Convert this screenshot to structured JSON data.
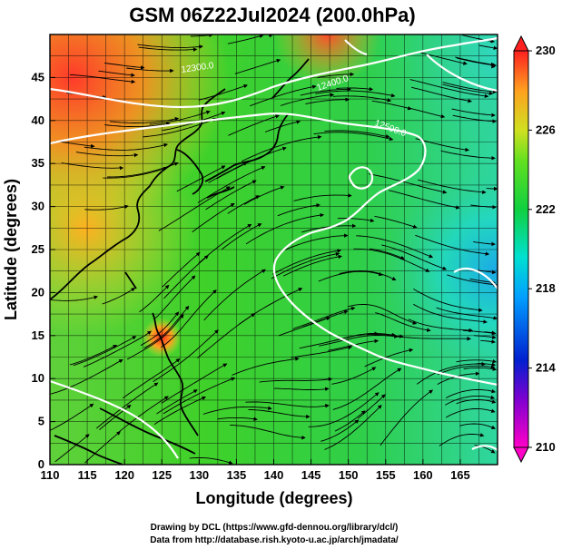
{
  "title": "GSM 06Z22Jul2024 (200.0hPa)",
  "xlabel": "Longitude (degrees)",
  "ylabel": "Latitude  (degrees)",
  "x_ticks": [
    "110",
    "115",
    "120",
    "125",
    "130",
    "135",
    "140",
    "145",
    "150",
    "155",
    "160",
    "165"
  ],
  "y_ticks": [
    "0",
    "5",
    "10",
    "15",
    "20",
    "25",
    "30",
    "35",
    "40",
    "45"
  ],
  "colorbar": {
    "labels": [
      "230",
      "226",
      "222",
      "218",
      "214",
      "210"
    ],
    "min": 210,
    "max": 230
  },
  "contour_labels": [
    "12500.0",
    "12400.0",
    "12300.0"
  ],
  "credits": {
    "line1": "Drawing by DCL (https://www.gfd-dennou.org/library/dcl/)",
    "line2": "Data from http://database.rish.kyoto-u.ac.jp/arch/jmadata/"
  }
}
